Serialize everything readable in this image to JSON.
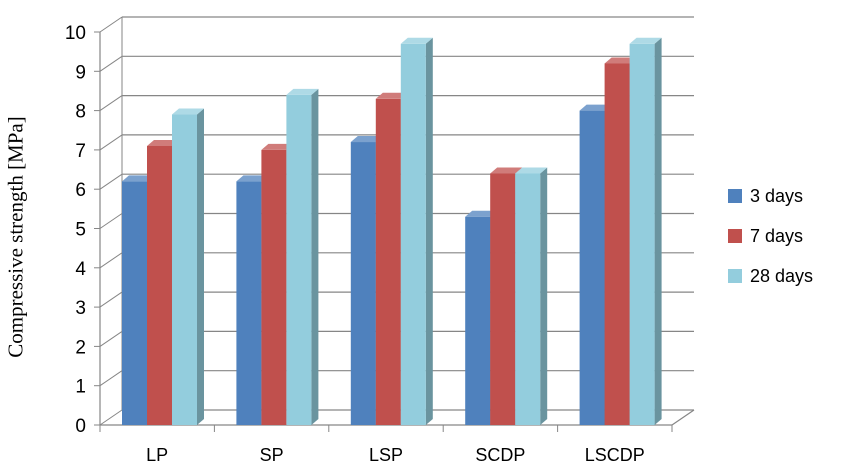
{
  "chart_data": {
    "type": "bar",
    "title": "",
    "xlabel": "",
    "ylabel": "Compressive strength [MPa]",
    "ylim": [
      0,
      10
    ],
    "yticks": [
      "0",
      "1",
      "2",
      "3",
      "4",
      "5",
      "6",
      "7",
      "8",
      "9",
      "10"
    ],
    "categories": [
      "LP",
      "SP",
      "LSP",
      "SCDP",
      "LSCDP"
    ],
    "series": [
      {
        "name": "3 days",
        "color": "#4f81bd",
        "values": [
          6.2,
          6.2,
          7.2,
          5.3,
          8.0
        ]
      },
      {
        "name": "7 days",
        "color": "#c0504d",
        "values": [
          7.1,
          7.0,
          8.3,
          6.4,
          9.2
        ]
      },
      {
        "name": "28 days",
        "color": "#93cddd",
        "values": [
          7.9,
          8.4,
          9.7,
          6.4,
          9.7
        ]
      }
    ],
    "grid": true,
    "legend_position": "right"
  }
}
